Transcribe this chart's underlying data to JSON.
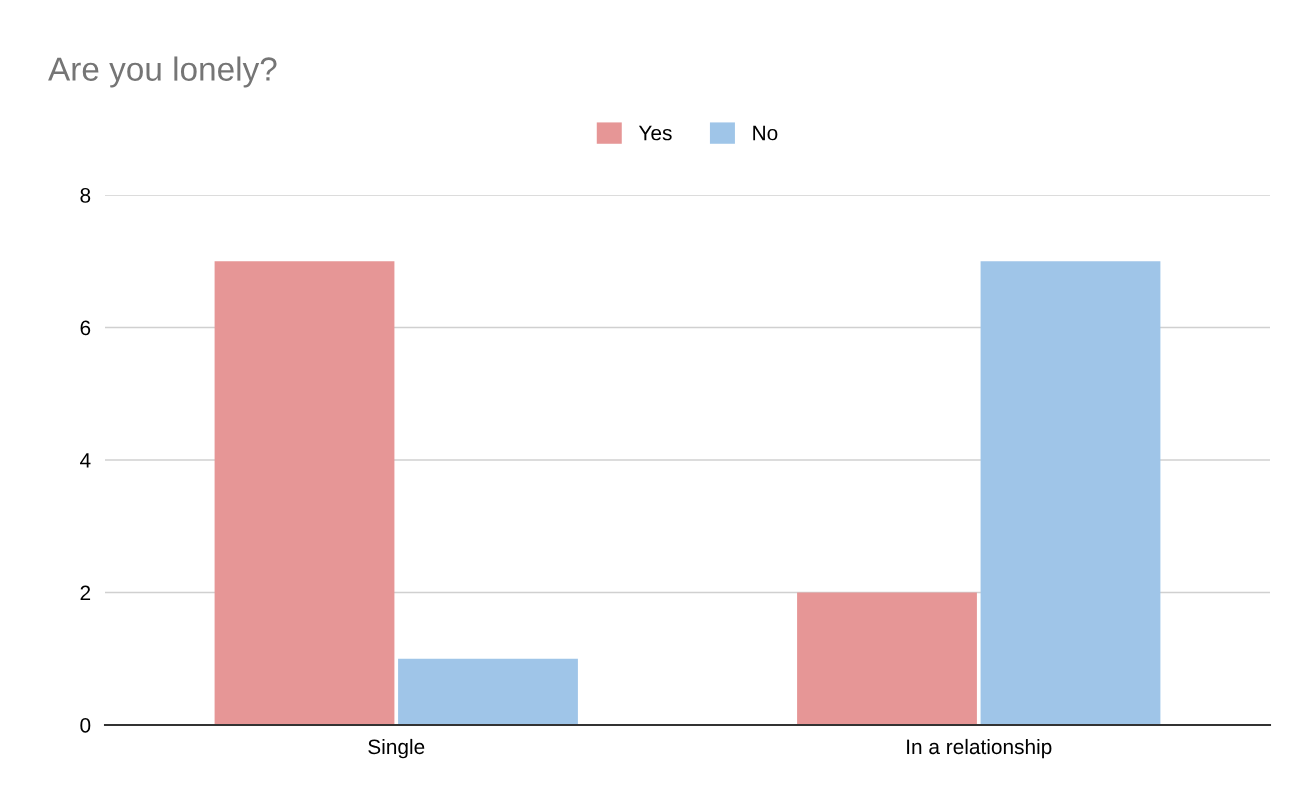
{
  "chart_data": {
    "type": "bar",
    "title": "Are you lonely?",
    "categories": [
      "Single",
      "In a relationship"
    ],
    "series": [
      {
        "name": "Yes",
        "color": "#e69696",
        "values": [
          7,
          2
        ]
      },
      {
        "name": "No",
        "color": "#9fc5e8",
        "values": [
          1,
          7
        ]
      }
    ],
    "ylim": [
      0,
      8
    ],
    "yticks": [
      0,
      2,
      4,
      6,
      8
    ],
    "grid": "y",
    "legend": "top"
  }
}
